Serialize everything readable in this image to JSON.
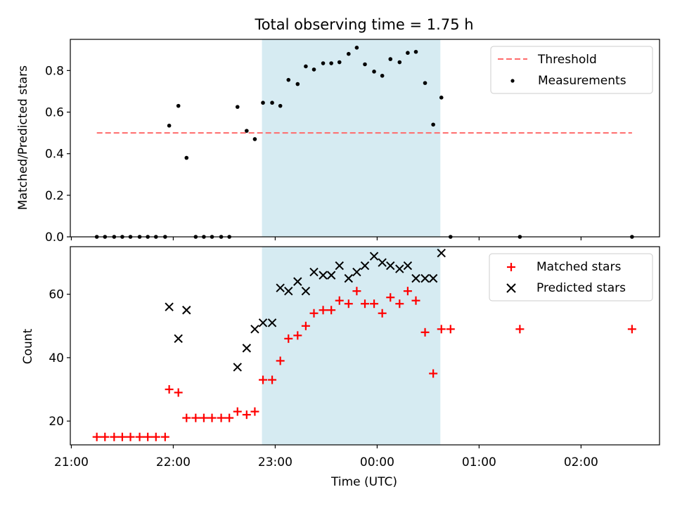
{
  "chart_data": [
    {
      "type": "scatter",
      "title": "Total observing time = 1.75 h",
      "xlabel": "",
      "ylabel": "Matched/Predicted stars",
      "x_unit": "hours (UTC, past 21:00 = 21.0)",
      "xlim": [
        20.99,
        26.77
      ],
      "ylim": [
        0,
        0.95
      ],
      "yticks": [
        "0.0",
        "0.2",
        "0.4",
        "0.6",
        "0.8"
      ],
      "shaded_region": {
        "x0": 22.87,
        "x1": 24.62,
        "color": "#add8e6"
      },
      "threshold": {
        "name": "Threshold",
        "y": 0.5,
        "x0": 21.25,
        "x1": 26.5,
        "color": "#ff6b6b",
        "style": "dashed"
      },
      "legend": {
        "position": "top-right",
        "entries": [
          "Threshold",
          "Measurements"
        ]
      },
      "series": [
        {
          "name": "Measurements",
          "color": "#000000",
          "x": [
            21.25,
            21.33,
            21.42,
            21.5,
            21.58,
            21.67,
            21.75,
            21.83,
            21.92,
            21.96,
            22.05,
            22.13,
            22.22,
            22.3,
            22.38,
            22.47,
            22.55,
            22.63,
            22.72,
            22.8,
            22.88,
            22.97,
            23.05,
            23.13,
            23.22,
            23.3,
            23.38,
            23.47,
            23.55,
            23.63,
            23.72,
            23.8,
            23.88,
            23.97,
            24.05,
            24.13,
            24.22,
            24.3,
            24.38,
            24.47,
            24.55,
            24.63,
            24.72,
            25.4,
            26.5
          ],
          "y": [
            0,
            0,
            0,
            0,
            0,
            0,
            0,
            0,
            0,
            0.535,
            0.63,
            0.38,
            0,
            0,
            0,
            0,
            0,
            0.625,
            0.51,
            0.47,
            0.645,
            0.645,
            0.63,
            0.755,
            0.735,
            0.82,
            0.805,
            0.835,
            0.835,
            0.84,
            0.88,
            0.91,
            0.83,
            0.795,
            0.775,
            0.855,
            0.84,
            0.885,
            0.89,
            0.74,
            0.54,
            0.67,
            0,
            0,
            0
          ]
        }
      ]
    },
    {
      "type": "scatter",
      "title": "",
      "xlabel": "Time (UTC)",
      "ylabel": "Count",
      "x_unit": "hours (UTC, past 21:00 = 21.0)",
      "xlim": [
        20.99,
        26.77
      ],
      "ylim": [
        12.5,
        75
      ],
      "yticks": [
        "20",
        "40",
        "60"
      ],
      "xticks": [
        "21:00",
        "22:00",
        "23:00",
        "00:00",
        "01:00",
        "02:00"
      ],
      "shaded_region": {
        "x0": 22.87,
        "x1": 24.62,
        "color": "#add8e6"
      },
      "legend": {
        "position": "top-right",
        "entries": [
          "Matched stars",
          "Predicted stars"
        ]
      },
      "series": [
        {
          "name": "Matched stars",
          "color": "#ff0000",
          "marker": "plus",
          "x": [
            21.25,
            21.33,
            21.42,
            21.5,
            21.58,
            21.67,
            21.75,
            21.83,
            21.92,
            21.96,
            22.05,
            22.13,
            22.22,
            22.3,
            22.38,
            22.47,
            22.55,
            22.63,
            22.72,
            22.8,
            22.88,
            22.97,
            23.05,
            23.13,
            23.22,
            23.3,
            23.38,
            23.47,
            23.55,
            23.63,
            23.72,
            23.8,
            23.88,
            23.97,
            24.05,
            24.13,
            24.22,
            24.3,
            24.38,
            24.47,
            24.55,
            24.63,
            24.72,
            25.4,
            26.5
          ],
          "y": [
            15,
            15,
            15,
            15,
            15,
            15,
            15,
            15,
            15,
            30,
            29,
            21,
            21,
            21,
            21,
            21,
            21,
            23,
            22,
            23,
            33,
            33,
            39,
            46,
            47,
            50,
            54,
            55,
            55,
            58,
            57,
            61,
            57,
            57,
            54,
            59,
            57,
            61,
            58,
            48,
            35,
            49,
            49,
            49,
            49
          ]
        },
        {
          "name": "Predicted stars",
          "color": "#000000",
          "marker": "x",
          "x": [
            21.96,
            22.05,
            22.13,
            22.63,
            22.72,
            22.8,
            22.88,
            22.97,
            23.05,
            23.13,
            23.22,
            23.3,
            23.38,
            23.47,
            23.55,
            23.63,
            23.72,
            23.8,
            23.88,
            23.97,
            24.05,
            24.13,
            24.22,
            24.3,
            24.38,
            24.47,
            24.55,
            24.63
          ],
          "y": [
            56,
            46,
            55,
            37,
            43,
            49,
            51,
            51,
            62,
            61,
            64,
            61,
            67,
            66,
            66,
            69,
            65,
            67,
            69,
            72,
            70,
            69,
            68,
            69,
            65,
            65,
            65,
            73
          ]
        }
      ]
    }
  ]
}
